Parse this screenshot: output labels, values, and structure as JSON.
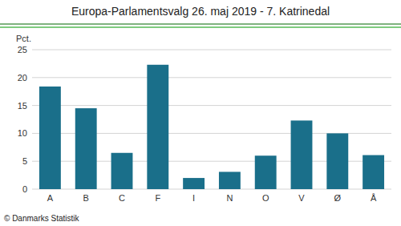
{
  "chart_data": {
    "type": "bar",
    "title": "Europa-Parlamentsvalg 26. maj 2019 - 7. Katrinedal",
    "categories": [
      "A",
      "B",
      "C",
      "F",
      "I",
      "N",
      "O",
      "V",
      "Ø",
      "Å"
    ],
    "values": [
      18.4,
      14.5,
      6.5,
      22.3,
      2.0,
      3.1,
      6.0,
      12.3,
      10.0,
      6.1
    ],
    "color": "#1a6f8a",
    "ylabel": "Pct.",
    "ylim": [
      0,
      25
    ],
    "yticks": [
      0,
      5,
      10,
      15,
      20,
      25
    ],
    "grid": true,
    "annotations": [
      "© Danmarks Statistik"
    ]
  }
}
